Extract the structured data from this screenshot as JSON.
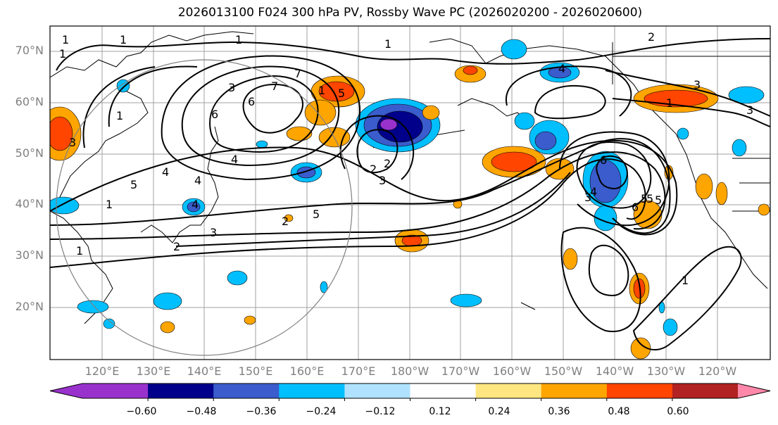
{
  "title": "2026013100 F024 300 hPa PV, Rossby Wave PC (2026020200 - 2026020600)",
  "lat_labels": [
    "70°N",
    "60°N",
    "50°N",
    "40°N",
    "30°N",
    "20°N"
  ],
  "lon_labels": [
    "120°E",
    "130°E",
    "140°E",
    "150°E",
    "160°E",
    "170°E",
    "180°W",
    "170°W",
    "160°W",
    "150°W",
    "140°W",
    "130°W",
    "120°W"
  ],
  "colorbar": {
    "colors": [
      "#9932cc",
      "#00008b",
      "#3a5ccc",
      "#00bfff",
      "#b0e2ff",
      "#ffffff",
      "#ffe680",
      "#ffa500",
      "#ff4500",
      "#b22222",
      "#ff88aa"
    ],
    "ticks": [
      "−0.60",
      "−0.48",
      "−0.36",
      "−0.24",
      "−0.12",
      "0.12",
      "0.24",
      "0.36",
      "0.48",
      "0.60"
    ]
  },
  "contour_labels": [
    "1",
    "1",
    "1",
    "2",
    "3",
    "4",
    "5",
    "6",
    "7",
    "5",
    "4",
    "3",
    "2",
    "1",
    "5",
    "6",
    "4",
    "3",
    "2",
    "1",
    "1",
    "5",
    "3",
    "1",
    "1",
    "2",
    "3",
    "4",
    "5",
    "6",
    "1",
    "3",
    "4",
    "1",
    "1",
    "3",
    "2",
    "6",
    "7",
    "4",
    "5"
  ]
}
